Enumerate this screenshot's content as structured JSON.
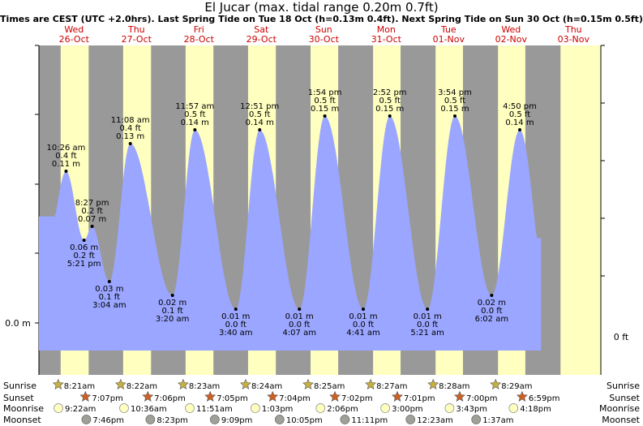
{
  "header": {
    "title": "El Jucar (max. tidal range 0.20m 0.7ft)",
    "subtitle": "Times are CEST (UTC +2.0hrs). Last Spring Tide on Tue 18 Oct (h=0.13m 0.4ft). Next Spring Tide on Sun 30 Oct (h=0.15m 0.5ft)"
  },
  "axes": {
    "left_label": "0.0 m",
    "right_label": "0 ft"
  },
  "colors": {
    "night": "#999999",
    "day": "#ffffc0",
    "water": "#9aa6ff",
    "day_label": "#cc0000",
    "sun_star": "#c8b040",
    "sunset_star": "#d06020",
    "moonrise": "#ffffc0",
    "moonset": "#a0a098"
  },
  "days": [
    {
      "dow": "Wed",
      "date": "26-Oct"
    },
    {
      "dow": "Thu",
      "date": "27-Oct"
    },
    {
      "dow": "Fri",
      "date": "28-Oct"
    },
    {
      "dow": "Sat",
      "date": "29-Oct"
    },
    {
      "dow": "Sun",
      "date": "30-Oct"
    },
    {
      "dow": "Mon",
      "date": "31-Oct"
    },
    {
      "dow": "Tue",
      "date": "01-Nov"
    },
    {
      "dow": "Wed",
      "date": "02-Nov"
    },
    {
      "dow": "Thu",
      "date": "03-Nov"
    }
  ],
  "chart_data": {
    "type": "area",
    "title": "El Jucar (max. tidal range 0.20m 0.7ft)",
    "ylabel": "0.0 m",
    "y2label": "0 ft",
    "ylim_m": [
      -0.03,
      0.19
    ],
    "x_range_hours": [
      0,
      216
    ],
    "tides": [
      {
        "type": "high",
        "time": "10:26 am",
        "ft": "0.4 ft",
        "m": "0.11 m",
        "hour": 10.43,
        "h": 0.11
      },
      {
        "type": "high",
        "time": "8:27 pm",
        "ft": "0.2 ft",
        "m": "0.07 m",
        "hour": 20.45,
        "h": 0.07
      },
      {
        "type": "low",
        "time": "5:21 pm",
        "ft": "0.2 ft",
        "m": "0.06 m",
        "hour": 17.35,
        "h": 0.06
      },
      {
        "type": "low",
        "time": "3:04 am",
        "ft": "0.1 ft",
        "m": "0.03 m",
        "hour": 27.07,
        "h": 0.03
      },
      {
        "type": "high",
        "time": "11:08 am",
        "ft": "0.4 ft",
        "m": "0.13 m",
        "hour": 35.13,
        "h": 0.13
      },
      {
        "type": "low",
        "time": "3:20 am",
        "ft": "0.1 ft",
        "m": "0.02 m",
        "hour": 51.33,
        "h": 0.02
      },
      {
        "type": "high",
        "time": "11:57 am",
        "ft": "0.5 ft",
        "m": "0.14 m",
        "hour": 59.95,
        "h": 0.14
      },
      {
        "type": "low",
        "time": "3:40 am",
        "ft": "0.0 ft",
        "m": "0.01 m",
        "hour": 75.67,
        "h": 0.01
      },
      {
        "type": "high",
        "time": "12:51 pm",
        "ft": "0.5 ft",
        "m": "0.14 m",
        "hour": 84.85,
        "h": 0.14
      },
      {
        "type": "low",
        "time": "4:07 am",
        "ft": "0.0 ft",
        "m": "0.01 m",
        "hour": 100.12,
        "h": 0.01
      },
      {
        "type": "high",
        "time": "1:54 pm",
        "ft": "0.5 ft",
        "m": "0.15 m",
        "hour": 109.9,
        "h": 0.15
      },
      {
        "type": "low",
        "time": "4:41 am",
        "ft": "0.0 ft",
        "m": "0.01 m",
        "hour": 124.68,
        "h": 0.01
      },
      {
        "type": "high",
        "time": "2:52 pm",
        "ft": "0.5 ft",
        "m": "0.15 m",
        "hour": 134.87,
        "h": 0.15
      },
      {
        "type": "low",
        "time": "5:21 am",
        "ft": "0.0 ft",
        "m": "0.01 m",
        "hour": 149.35,
        "h": 0.01
      },
      {
        "type": "high",
        "time": "3:54 pm",
        "ft": "0.5 ft",
        "m": "0.15 m",
        "hour": 159.9,
        "h": 0.15
      },
      {
        "type": "low",
        "time": "6:02 am",
        "ft": "0.0 ft",
        "m": "0.02 m",
        "hour": 174.03,
        "h": 0.02
      },
      {
        "type": "high",
        "time": "4:50 pm",
        "ft": "0.5 ft",
        "m": "0.14 m",
        "hour": 184.83,
        "h": 0.14
      }
    ],
    "daylight_hours": [
      [
        8.35,
        19.12
      ],
      [
        32.37,
        43.1
      ],
      [
        56.38,
        67.08
      ],
      [
        80.4,
        91.07
      ],
      [
        104.42,
        115.03
      ],
      [
        128.45,
        139.02
      ],
      [
        152.47,
        163.0
      ],
      [
        176.48,
        186.98
      ],
      [
        200.5,
        216
      ]
    ],
    "series": [
      {
        "values_ref": "tides"
      }
    ]
  },
  "almanac": {
    "labels": {
      "sunrise": "Sunrise",
      "sunset": "Sunset",
      "moonrise": "Moonrise",
      "moonset": "Moonset"
    },
    "sunrise": [
      {
        "time": "8:21am",
        "hour": 8.35
      },
      {
        "time": "8:22am",
        "hour": 32.37
      },
      {
        "time": "8:23am",
        "hour": 56.38
      },
      {
        "time": "8:24am",
        "hour": 80.4
      },
      {
        "time": "8:25am",
        "hour": 104.42
      },
      {
        "time": "8:27am",
        "hour": 128.45
      },
      {
        "time": "8:28am",
        "hour": 152.47
      },
      {
        "time": "8:29am",
        "hour": 176.48
      }
    ],
    "sunset": [
      {
        "time": "7:07pm",
        "hour": 19.12
      },
      {
        "time": "7:06pm",
        "hour": 43.1
      },
      {
        "time": "7:05pm",
        "hour": 67.08
      },
      {
        "time": "7:04pm",
        "hour": 91.07
      },
      {
        "time": "7:02pm",
        "hour": 115.03
      },
      {
        "time": "7:01pm",
        "hour": 139.02
      },
      {
        "time": "7:00pm",
        "hour": 163.0
      },
      {
        "time": "6:59pm",
        "hour": 186.98
      }
    ],
    "moonrise": [
      {
        "time": "9:22am",
        "hour": 9.37
      },
      {
        "time": "10:36am",
        "hour": 34.6
      },
      {
        "time": "11:51am",
        "hour": 59.85
      },
      {
        "time": "1:03pm",
        "hour": 85.05
      },
      {
        "time": "2:06pm",
        "hour": 110.1
      },
      {
        "time": "3:00pm",
        "hour": 135.0
      },
      {
        "time": "3:43pm",
        "hour": 159.72
      },
      {
        "time": "4:18pm",
        "hour": 184.3
      }
    ],
    "moonset": [
      {
        "time": "7:46pm",
        "hour": 19.77
      },
      {
        "time": "8:23pm",
        "hour": 44.38
      },
      {
        "time": "9:09pm",
        "hour": 69.15
      },
      {
        "time": "10:05pm",
        "hour": 94.08
      },
      {
        "time": "11:11pm",
        "hour": 119.18
      },
      {
        "time": "12:23am",
        "hour": 144.38
      },
      {
        "time": "1:37am",
        "hour": 169.62
      }
    ]
  }
}
